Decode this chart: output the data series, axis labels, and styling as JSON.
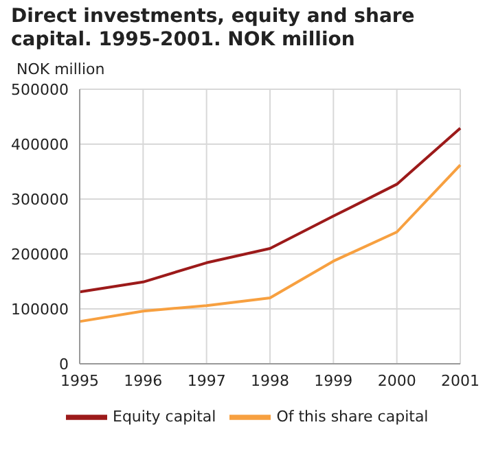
{
  "chart_data": {
    "type": "line",
    "title": "Direct investments, equity and share capital. 1995-2001. NOK million",
    "ylabel": "NOK million",
    "categories": [
      "1995",
      "1996",
      "1997",
      "1998",
      "1999",
      "2000",
      "2001"
    ],
    "series": [
      {
        "name": "Equity capital",
        "color": "#9c1a1a",
        "values": [
          131000,
          149000,
          184000,
          210000,
          269000,
          327000,
          429000
        ]
      },
      {
        "name": "Of this share capital",
        "color": "#f7a040",
        "values": [
          77000,
          96000,
          106000,
          120000,
          187000,
          240000,
          362000
        ]
      }
    ],
    "ylim": [
      0,
      500000
    ],
    "yticks": [
      0,
      100000,
      200000,
      300000,
      400000,
      500000
    ],
    "grid": true,
    "legend": "bottom",
    "marker": "none",
    "line_style": "solid"
  }
}
